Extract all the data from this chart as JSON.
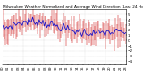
{
  "title": "Milwaukee Weather Normalized and Average Wind Direction (Last 24 Hours)",
  "background_color": "#ffffff",
  "plot_bg_color": "#ffffff",
  "grid_color": "#bbbbbb",
  "bar_color": "#cc0000",
  "line_color": "#0000cc",
  "n_points": 96,
  "seed": 7,
  "ylim": [
    -4.5,
    6.0
  ],
  "y_ticks": [
    5,
    4,
    3,
    2,
    1,
    0,
    -1,
    -2,
    -3,
    -4
  ],
  "title_fontsize": 3.2,
  "tick_fontsize": 3.0,
  "xtick_fontsize": 2.5
}
